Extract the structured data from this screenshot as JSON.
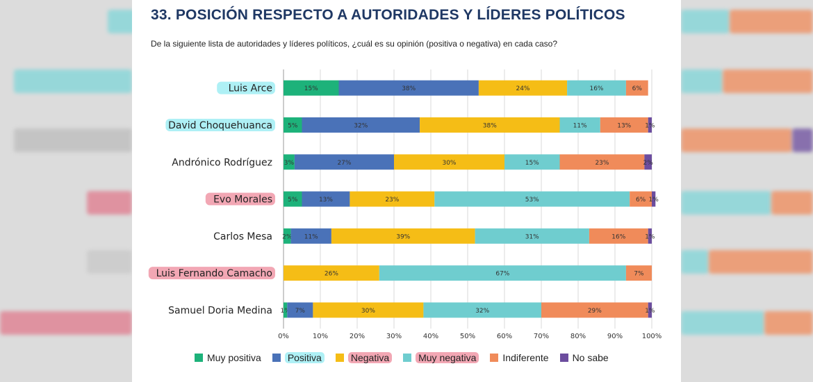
{
  "header": {
    "title": "33. POSICIÓN RESPECTO A AUTORIDADES Y LÍDERES POLÍTICOS",
    "subtitle": "De la siguiente lista de autoridades y líderes políticos, ¿cuál es su opinión (positiva o negativa) en cada caso?"
  },
  "colors": {
    "muy_positiva": "#1db27a",
    "positiva": "#4a72b8",
    "negativa": "#f5bd16",
    "muy_negativa": "#6fcdcf",
    "indiferente": "#f08b5a",
    "no_sabe": "#6c4d9e",
    "highlight_cyan": "#aef0f5",
    "highlight_pink": "#f2a7b4"
  },
  "chart_data": {
    "type": "bar",
    "orientation": "horizontal",
    "stacked": true,
    "title": "33. POSICIÓN RESPECTO A AUTORIDADES Y LÍDERES POLÍTICOS",
    "xlim": [
      0,
      100
    ],
    "xticks": [
      "0%",
      "10%",
      "20%",
      "30%",
      "40%",
      "50%",
      "60%",
      "70%",
      "80%",
      "90%",
      "100%"
    ],
    "legend_position": "bottom",
    "grid": true,
    "categories": [
      {
        "name": "Luis Arce",
        "highlight": "cyan"
      },
      {
        "name": "David Choquehuanca",
        "highlight": "cyan"
      },
      {
        "name": "Andrónico Rodríguez",
        "highlight": ""
      },
      {
        "name": "Evo Morales",
        "highlight": "pink"
      },
      {
        "name": "Carlos Mesa",
        "highlight": ""
      },
      {
        "name": "Luis Fernando Camacho",
        "highlight": "pink"
      },
      {
        "name": "Samuel Doria Medina",
        "highlight": ""
      }
    ],
    "series": [
      {
        "name": "Muy positiva",
        "color": "#1db27a",
        "legend_highlight": "",
        "values": [
          15,
          5,
          3,
          5,
          2,
          0,
          1
        ]
      },
      {
        "name": "Positiva",
        "color": "#4a72b8",
        "legend_highlight": "cyan",
        "values": [
          38,
          32,
          27,
          13,
          11,
          0,
          7
        ]
      },
      {
        "name": "Negativa",
        "color": "#f5bd16",
        "legend_highlight": "pink",
        "values": [
          24,
          38,
          30,
          23,
          39,
          26,
          30
        ]
      },
      {
        "name": "Muy negativa",
        "color": "#6fcdcf",
        "legend_highlight": "pink",
        "values": [
          16,
          11,
          15,
          53,
          31,
          67,
          32
        ]
      },
      {
        "name": "Indiferente",
        "color": "#f08b5a",
        "legend_highlight": "",
        "values": [
          6,
          13,
          23,
          6,
          16,
          7,
          29
        ]
      },
      {
        "name": "No sabe",
        "color": "#6c4d9e",
        "legend_highlight": "",
        "values": [
          0,
          1,
          2,
          1,
          1,
          0,
          1
        ]
      }
    ]
  }
}
